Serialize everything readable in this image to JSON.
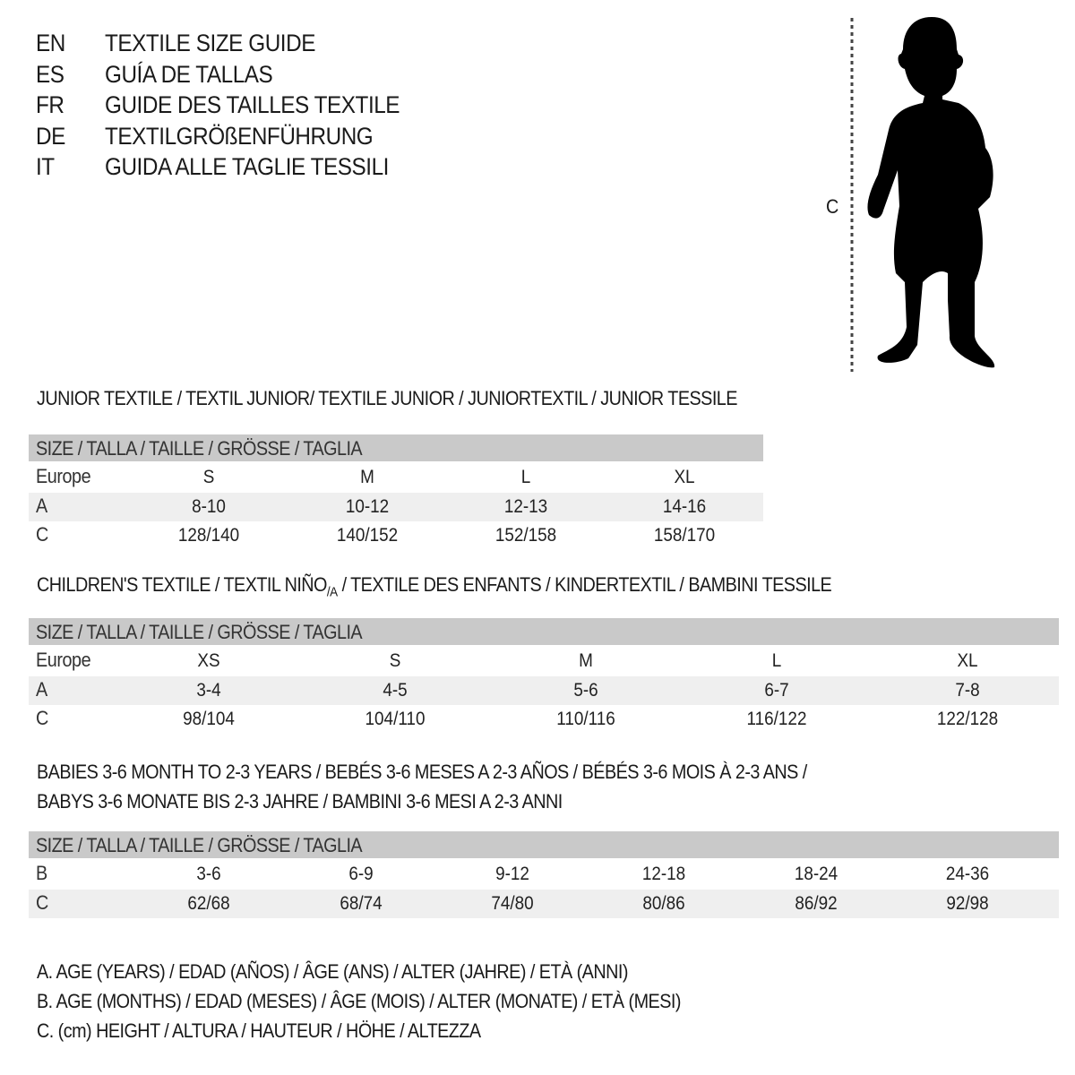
{
  "languages": [
    {
      "code": "EN",
      "text": "TEXTILE SIZE GUIDE"
    },
    {
      "code": "ES",
      "text": "GUÍA DE TALLAS"
    },
    {
      "code": "FR",
      "text": "GUIDE DES TAILLES TEXTILE"
    },
    {
      "code": "DE",
      "text": "TEXTILGRÖßENFÜHRUNG"
    },
    {
      "code": "IT",
      "text": "GUIDA ALLE TAGLIE TESSILI"
    }
  ],
  "figure": {
    "height_label": "C",
    "icon": "child-silhouette"
  },
  "junior": {
    "title": "JUNIOR TEXTILE / TEXTIL JUNIOR/ TEXTILE JUNIOR / JUNIORTEXTIL / JUNIOR TESSILE",
    "header": "SIZE / TALLA / TAILLE / GRÖSSE / TAGLIA",
    "rows": [
      {
        "label": "Europe",
        "cells": [
          "S",
          "M",
          "L",
          "XL"
        ]
      },
      {
        "label": "A",
        "cells": [
          "8-10",
          "10-12",
          "12-13",
          "14-16"
        ]
      },
      {
        "label": "C",
        "cells": [
          "128/140",
          "140/152",
          "152/158",
          "158/170"
        ]
      }
    ]
  },
  "children": {
    "title_pre": "CHILDREN'S TEXTILE / TEXTIL NIÑO",
    "title_sub": "/A",
    "title_post": " / TEXTILE DES ENFANTS / KINDERTEXTIL / BAMBINI TESSILE",
    "header": "SIZE / TALLA / TAILLE / GRÖSSE / TAGLIA",
    "rows": [
      {
        "label": "Europe",
        "cells": [
          "XS",
          "S",
          "M",
          "L",
          "XL"
        ]
      },
      {
        "label": "A",
        "cells": [
          "3-4",
          "4-5",
          "5-6",
          "6-7",
          "7-8"
        ]
      },
      {
        "label": "C",
        "cells": [
          "98/104",
          "104/110",
          "110/116",
          "116/122",
          "122/128"
        ]
      }
    ]
  },
  "babies": {
    "title_line1": "BABIES 3-6 MONTH TO 2-3 YEARS / BEBÉS 3-6 MESES A 2-3 AÑOS / BÉBÉS 3-6 MOIS À 2-3 ANS /",
    "title_line2": "BABYS 3-6 MONATE BIS 2-3 JAHRE / BAMBINI 3-6 MESI A 2-3 ANNI",
    "header": "SIZE / TALLA / TAILLE / GRÖSSE / TAGLIA",
    "rows": [
      {
        "label": "B",
        "cells": [
          "3-6",
          "6-9",
          "9-12",
          "12-18",
          "18-24",
          "24-36"
        ]
      },
      {
        "label": "C",
        "cells": [
          "62/68",
          "68/74",
          "74/80",
          "80/86",
          "86/92",
          "92/98"
        ]
      }
    ]
  },
  "legend": [
    "A. AGE (YEARS) / EDAD (AÑOS) / ÂGE (ANS) / ALTER (JAHRE) / ETÀ (ANNI)",
    "B. AGE (MONTHS) / EDAD (MESES) / ÂGE (MOIS) / ALTER (MONATE) / ETÀ (MESI)",
    "C. (cm) HEIGHT / ALTURA / HAUTEUR / HÖHE / ALTEZZA"
  ],
  "colors": {
    "header_bg": "#c9c9c9",
    "row_alt_bg": "#efefef",
    "text": "#1a1a1a"
  }
}
